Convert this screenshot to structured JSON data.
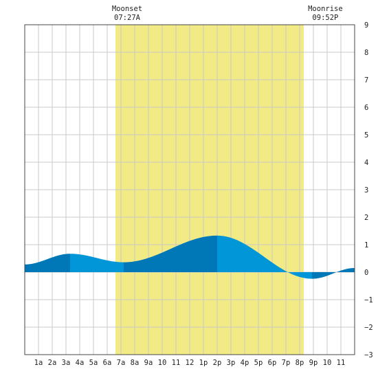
{
  "chart_data": {
    "type": "area",
    "title": "",
    "xlabel": "",
    "ylabel": "",
    "x_range": [
      0,
      24
    ],
    "ylim": [
      -3,
      9
    ],
    "y_ticks": [
      -3,
      -2,
      -1,
      0,
      1,
      2,
      3,
      4,
      5,
      6,
      7,
      8,
      9
    ],
    "x_tick_positions": [
      1,
      2,
      3,
      4,
      5,
      6,
      7,
      8,
      9,
      10,
      11,
      12,
      13,
      14,
      15,
      16,
      17,
      18,
      19,
      20,
      21,
      22,
      23
    ],
    "x_tick_labels": [
      "1a",
      "2a",
      "3a",
      "4a",
      "5a",
      "6a",
      "7a",
      "8a",
      "9a",
      "10",
      "11",
      "12",
      "1p",
      "2p",
      "3p",
      "4p",
      "5p",
      "6p",
      "7p",
      "8p",
      "9p",
      "10",
      "11"
    ],
    "grid": true,
    "daylight_band": {
      "start": 6.6,
      "end": 20.3,
      "color": "#f2ea85"
    },
    "moon_events": [
      {
        "name": "Moonset",
        "time": "07:27A",
        "hour": 7.45
      },
      {
        "name": "Moonrise",
        "time": "09:52P",
        "hour": 21.87
      }
    ],
    "tide_extrema": [
      {
        "hour": 0.0,
        "height": 0.28
      },
      {
        "hour": 3.3,
        "height": 0.67
      },
      {
        "hour": 7.2,
        "height": 0.36
      },
      {
        "hour": 14.0,
        "height": 1.33
      },
      {
        "hour": 20.9,
        "height": -0.24
      },
      {
        "hour": 24.0,
        "height": 0.15
      }
    ],
    "fill_colors": {
      "dark": "#0077b6",
      "light": "#0096d8"
    }
  }
}
